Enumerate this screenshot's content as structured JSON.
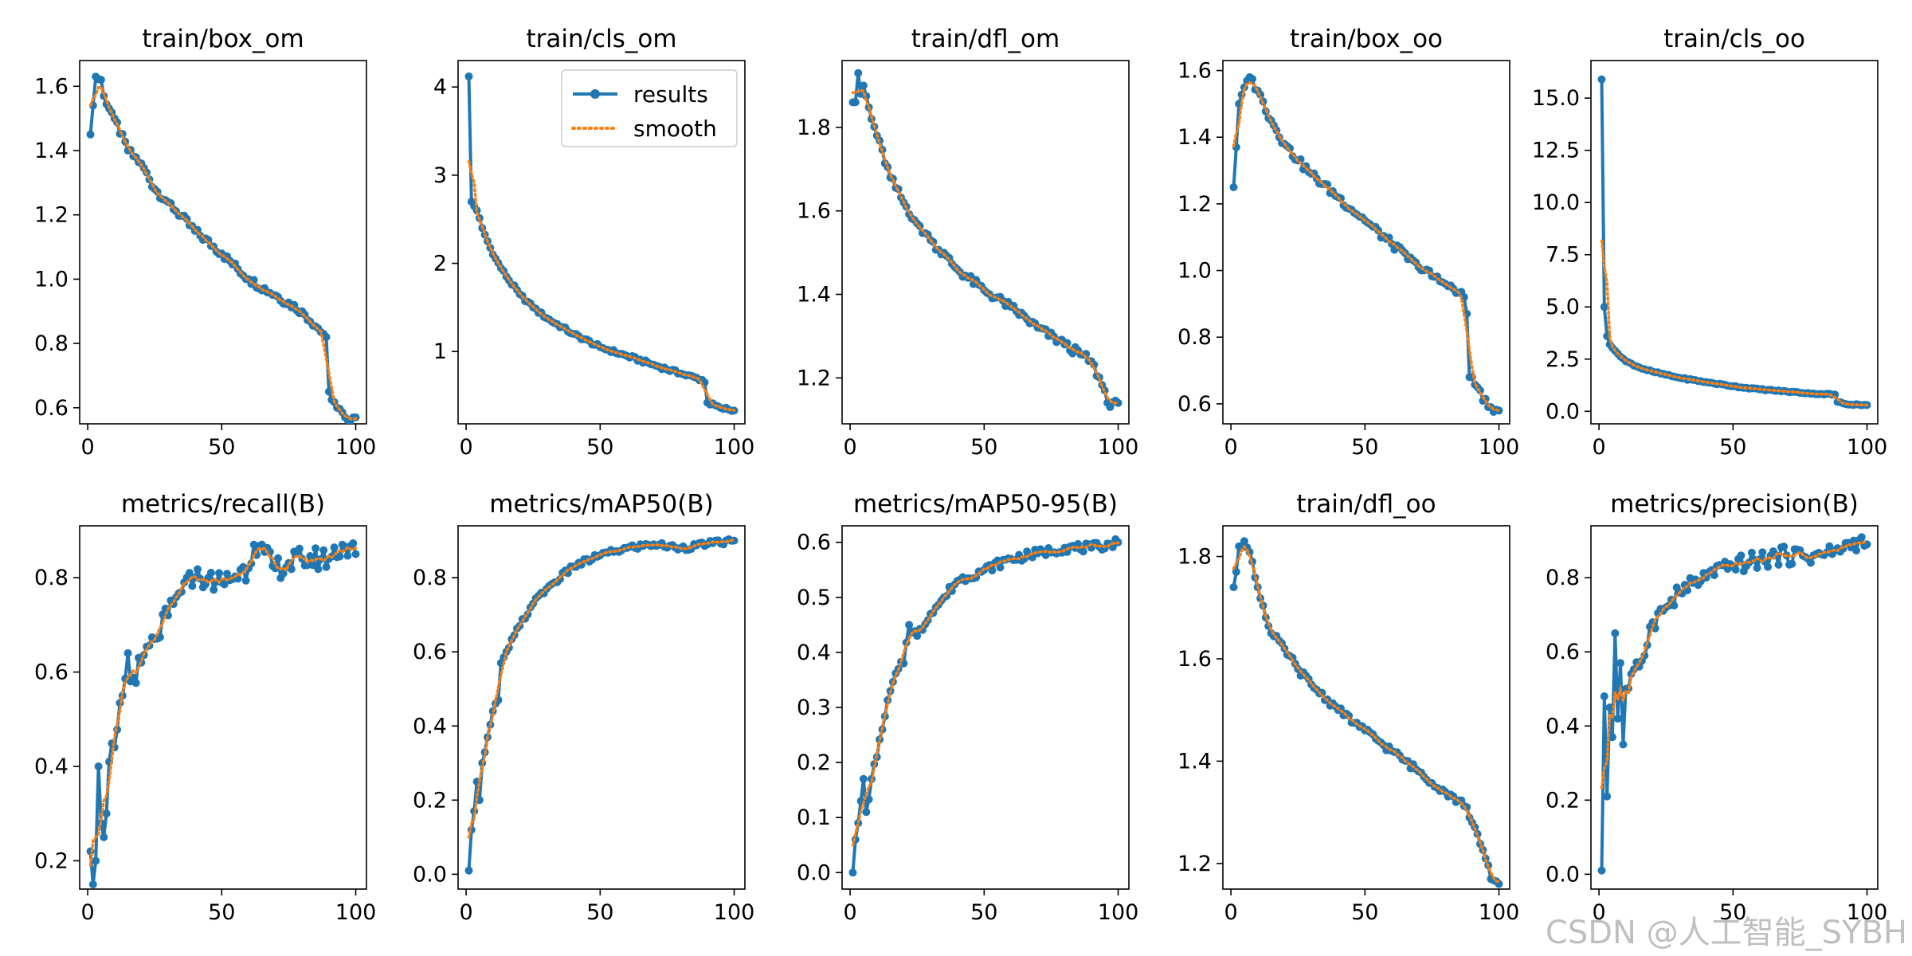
{
  "colors": {
    "results": "#1f77b4",
    "smooth": "#ff7f0e",
    "axis": "#000000",
    "background": "#ffffff"
  },
  "watermark": "CSDN @人工智能_SYBH",
  "chart_data": [
    {
      "type": "line",
      "title": "train/box_om",
      "xlim": [
        -3,
        104
      ],
      "ylim": [
        0.55,
        1.68
      ],
      "xticks": [
        0,
        50,
        100
      ],
      "yticks": [
        0.6,
        0.8,
        1.0,
        1.2,
        1.4,
        1.6
      ],
      "ytick_labels": [
        "0.6",
        "0.8",
        "1.0",
        "1.2",
        "1.4",
        "1.6"
      ],
      "legend": null,
      "anchors": [
        [
          1,
          1.45
        ],
        [
          2,
          1.54
        ],
        [
          3,
          1.63
        ],
        [
          5,
          1.62
        ],
        [
          6,
          1.57
        ],
        [
          10,
          1.5
        ],
        [
          15,
          1.4
        ],
        [
          20,
          1.36
        ],
        [
          25,
          1.28
        ],
        [
          30,
          1.24
        ],
        [
          40,
          1.15
        ],
        [
          50,
          1.08
        ],
        [
          60,
          1.0
        ],
        [
          70,
          0.95
        ],
        [
          80,
          0.9
        ],
        [
          88,
          0.83
        ],
        [
          89,
          0.82
        ],
        [
          90,
          0.65
        ],
        [
          93,
          0.6
        ],
        [
          96,
          0.57
        ],
        [
          100,
          0.57
        ]
      ],
      "noise": 0.012
    },
    {
      "type": "line",
      "title": "train/cls_om",
      "xlim": [
        -3,
        104
      ],
      "ylim": [
        0.18,
        4.3
      ],
      "xticks": [
        0,
        50,
        100
      ],
      "yticks": [
        1,
        2,
        3,
        4
      ],
      "ytick_labels": [
        "1",
        "2",
        "3",
        "4"
      ],
      "legend": {
        "position": "top-right",
        "entries": [
          "results",
          "smooth"
        ]
      },
      "anchors": [
        [
          1,
          4.12
        ],
        [
          2,
          2.7
        ],
        [
          4,
          2.6
        ],
        [
          6,
          2.4
        ],
        [
          10,
          2.1
        ],
        [
          15,
          1.85
        ],
        [
          20,
          1.65
        ],
        [
          25,
          1.5
        ],
        [
          30,
          1.38
        ],
        [
          40,
          1.2
        ],
        [
          50,
          1.05
        ],
        [
          60,
          0.95
        ],
        [
          70,
          0.85
        ],
        [
          80,
          0.75
        ],
        [
          88,
          0.68
        ],
        [
          89,
          0.65
        ],
        [
          90,
          0.42
        ],
        [
          95,
          0.36
        ],
        [
          100,
          0.33
        ]
      ],
      "noise": 0.02
    },
    {
      "type": "line",
      "title": "train/dfl_om",
      "xlim": [
        -3,
        104
      ],
      "ylim": [
        1.09,
        1.96
      ],
      "xticks": [
        0,
        50,
        100
      ],
      "yticks": [
        1.2,
        1.4,
        1.6,
        1.8
      ],
      "ytick_labels": [
        "1.2",
        "1.4",
        "1.6",
        "1.8"
      ],
      "legend": null,
      "anchors": [
        [
          1,
          1.86
        ],
        [
          2,
          1.86
        ],
        [
          3,
          1.93
        ],
        [
          4,
          1.88
        ],
        [
          5,
          1.9
        ],
        [
          8,
          1.82
        ],
        [
          10,
          1.78
        ],
        [
          15,
          1.68
        ],
        [
          20,
          1.62
        ],
        [
          25,
          1.57
        ],
        [
          30,
          1.53
        ],
        [
          40,
          1.46
        ],
        [
          50,
          1.41
        ],
        [
          60,
          1.37
        ],
        [
          70,
          1.32
        ],
        [
          80,
          1.28
        ],
        [
          90,
          1.24
        ],
        [
          95,
          1.17
        ],
        [
          97,
          1.13
        ],
        [
          100,
          1.14
        ]
      ],
      "noise": 0.01
    },
    {
      "type": "line",
      "title": "train/box_oo",
      "xlim": [
        -3,
        104
      ],
      "ylim": [
        0.54,
        1.63
      ],
      "xticks": [
        0,
        50,
        100
      ],
      "yticks": [
        0.6,
        0.8,
        1.0,
        1.2,
        1.4,
        1.6
      ],
      "ytick_labels": [
        "0.6",
        "0.8",
        "1.0",
        "1.2",
        "1.4",
        "1.6"
      ],
      "legend": null,
      "anchors": [
        [
          1,
          1.25
        ],
        [
          2,
          1.37
        ],
        [
          3,
          1.5
        ],
        [
          5,
          1.55
        ],
        [
          7,
          1.58
        ],
        [
          10,
          1.54
        ],
        [
          15,
          1.45
        ],
        [
          20,
          1.38
        ],
        [
          25,
          1.33
        ],
        [
          30,
          1.29
        ],
        [
          40,
          1.22
        ],
        [
          50,
          1.15
        ],
        [
          60,
          1.08
        ],
        [
          70,
          1.01
        ],
        [
          80,
          0.96
        ],
        [
          87,
          0.92
        ],
        [
          88,
          0.87
        ],
        [
          89,
          0.68
        ],
        [
          92,
          0.65
        ],
        [
          96,
          0.59
        ],
        [
          100,
          0.58
        ]
      ],
      "noise": 0.012
    },
    {
      "type": "line",
      "title": "train/cls_oo",
      "xlim": [
        -3,
        104
      ],
      "ylim": [
        -0.6,
        16.8
      ],
      "xticks": [
        0,
        50,
        100
      ],
      "yticks": [
        0,
        2.5,
        5,
        7.5,
        10,
        12.5,
        15
      ],
      "ytick_labels": [
        "0.0",
        "2.5",
        "5.0",
        "7.5",
        "10.0",
        "12.5",
        "15.0"
      ],
      "legend": null,
      "anchors": [
        [
          1,
          15.9
        ],
        [
          2,
          5.0
        ],
        [
          3,
          3.6
        ],
        [
          4,
          3.2
        ],
        [
          6,
          2.9
        ],
        [
          10,
          2.4
        ],
        [
          15,
          2.1
        ],
        [
          20,
          1.9
        ],
        [
          30,
          1.6
        ],
        [
          40,
          1.4
        ],
        [
          50,
          1.2
        ],
        [
          60,
          1.05
        ],
        [
          70,
          0.95
        ],
        [
          80,
          0.85
        ],
        [
          88,
          0.8
        ],
        [
          89,
          0.45
        ],
        [
          92,
          0.35
        ],
        [
          100,
          0.3
        ]
      ],
      "noise": 0.03
    },
    {
      "type": "line",
      "title": "metrics/recall(B)",
      "xlim": [
        -3,
        104
      ],
      "ylim": [
        0.14,
        0.91
      ],
      "xticks": [
        0,
        50,
        100
      ],
      "yticks": [
        0.2,
        0.4,
        0.6,
        0.8
      ],
      "ytick_labels": [
        "0.2",
        "0.4",
        "0.6",
        "0.8"
      ],
      "legend": null,
      "anchors": [
        [
          1,
          0.22
        ],
        [
          2,
          0.15
        ],
        [
          3,
          0.2
        ],
        [
          4,
          0.4
        ],
        [
          5,
          0.28
        ],
        [
          6,
          0.25
        ],
        [
          7,
          0.3
        ],
        [
          8,
          0.41
        ],
        [
          10,
          0.44
        ],
        [
          13,
          0.55
        ],
        [
          15,
          0.64
        ],
        [
          16,
          0.58
        ],
        [
          20,
          0.62
        ],
        [
          25,
          0.67
        ],
        [
          30,
          0.72
        ],
        [
          35,
          0.77
        ],
        [
          40,
          0.8
        ],
        [
          45,
          0.8
        ],
        [
          50,
          0.79
        ],
        [
          60,
          0.82
        ],
        [
          62,
          0.87
        ],
        [
          70,
          0.82
        ],
        [
          80,
          0.84
        ],
        [
          90,
          0.84
        ],
        [
          95,
          0.87
        ],
        [
          100,
          0.85
        ]
      ],
      "noise": 0.025
    },
    {
      "type": "line",
      "title": "metrics/mAP50(B)",
      "xlim": [
        -3,
        104
      ],
      "ylim": [
        -0.04,
        0.94
      ],
      "xticks": [
        0,
        50,
        100
      ],
      "yticks": [
        0.0,
        0.2,
        0.4,
        0.6,
        0.8
      ],
      "ytick_labels": [
        "0.0",
        "0.2",
        "0.4",
        "0.6",
        "0.8"
      ],
      "legend": null,
      "anchors": [
        [
          1,
          0.01
        ],
        [
          2,
          0.12
        ],
        [
          3,
          0.17
        ],
        [
          4,
          0.25
        ],
        [
          5,
          0.2
        ],
        [
          6,
          0.3
        ],
        [
          8,
          0.37
        ],
        [
          10,
          0.44
        ],
        [
          12,
          0.47
        ],
        [
          13,
          0.57
        ],
        [
          15,
          0.6
        ],
        [
          20,
          0.67
        ],
        [
          25,
          0.73
        ],
        [
          30,
          0.77
        ],
        [
          40,
          0.83
        ],
        [
          50,
          0.86
        ],
        [
          60,
          0.88
        ],
        [
          70,
          0.89
        ],
        [
          80,
          0.88
        ],
        [
          90,
          0.89
        ],
        [
          100,
          0.9
        ]
      ],
      "noise": 0.008
    },
    {
      "type": "line",
      "title": "metrics/mAP50-95(B)",
      "xlim": [
        -3,
        104
      ],
      "ylim": [
        -0.03,
        0.63
      ],
      "xticks": [
        0,
        50,
        100
      ],
      "yticks": [
        0.0,
        0.1,
        0.2,
        0.3,
        0.4,
        0.5,
        0.6
      ],
      "ytick_labels": [
        "0.0",
        "0.1",
        "0.2",
        "0.3",
        "0.4",
        "0.5",
        "0.6"
      ],
      "legend": null,
      "anchors": [
        [
          1,
          0.0
        ],
        [
          2,
          0.06
        ],
        [
          3,
          0.09
        ],
        [
          4,
          0.13
        ],
        [
          5,
          0.17
        ],
        [
          6,
          0.11
        ],
        [
          8,
          0.17
        ],
        [
          10,
          0.21
        ],
        [
          12,
          0.26
        ],
        [
          15,
          0.33
        ],
        [
          18,
          0.37
        ],
        [
          20,
          0.38
        ],
        [
          22,
          0.45
        ],
        [
          25,
          0.43
        ],
        [
          30,
          0.47
        ],
        [
          35,
          0.5
        ],
        [
          40,
          0.53
        ],
        [
          50,
          0.55
        ],
        [
          60,
          0.57
        ],
        [
          70,
          0.58
        ],
        [
          80,
          0.59
        ],
        [
          90,
          0.59
        ],
        [
          100,
          0.6
        ]
      ],
      "noise": 0.008
    },
    {
      "type": "line",
      "title": "train/dfl_oo",
      "xlim": [
        -3,
        104
      ],
      "ylim": [
        1.15,
        1.86
      ],
      "xticks": [
        0,
        50,
        100
      ],
      "yticks": [
        1.2,
        1.4,
        1.6,
        1.8
      ],
      "ytick_labels": [
        "1.2",
        "1.4",
        "1.6",
        "1.8"
      ],
      "legend": null,
      "anchors": [
        [
          1,
          1.74
        ],
        [
          2,
          1.77
        ],
        [
          3,
          1.82
        ],
        [
          5,
          1.83
        ],
        [
          8,
          1.79
        ],
        [
          10,
          1.74
        ],
        [
          15,
          1.65
        ],
        [
          20,
          1.62
        ],
        [
          25,
          1.58
        ],
        [
          30,
          1.55
        ],
        [
          40,
          1.5
        ],
        [
          50,
          1.46
        ],
        [
          60,
          1.42
        ],
        [
          70,
          1.38
        ],
        [
          80,
          1.34
        ],
        [
          88,
          1.31
        ],
        [
          90,
          1.28
        ],
        [
          95,
          1.21
        ],
        [
          97,
          1.17
        ],
        [
          100,
          1.16
        ]
      ],
      "noise": 0.007
    },
    {
      "type": "line",
      "title": "metrics/precision(B)",
      "xlim": [
        -3,
        104
      ],
      "ylim": [
        -0.04,
        0.94
      ],
      "xticks": [
        0,
        50,
        100
      ],
      "yticks": [
        0.0,
        0.2,
        0.4,
        0.6,
        0.8
      ],
      "ytick_labels": [
        "0.0",
        "0.2",
        "0.4",
        "0.6",
        "0.8"
      ],
      "legend": null,
      "anchors": [
        [
          1,
          0.01
        ],
        [
          2,
          0.48
        ],
        [
          3,
          0.21
        ],
        [
          4,
          0.45
        ],
        [
          5,
          0.37
        ],
        [
          6,
          0.65
        ],
        [
          7,
          0.42
        ],
        [
          8,
          0.57
        ],
        [
          9,
          0.35
        ],
        [
          10,
          0.5
        ],
        [
          15,
          0.56
        ],
        [
          20,
          0.68
        ],
        [
          25,
          0.72
        ],
        [
          30,
          0.76
        ],
        [
          40,
          0.8
        ],
        [
          50,
          0.83
        ],
        [
          60,
          0.85
        ],
        [
          70,
          0.86
        ],
        [
          80,
          0.86
        ],
        [
          90,
          0.87
        ],
        [
          95,
          0.9
        ],
        [
          100,
          0.89
        ]
      ],
      "noise": 0.025
    }
  ]
}
